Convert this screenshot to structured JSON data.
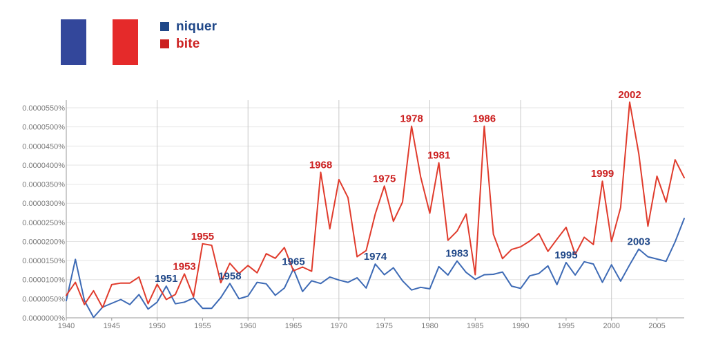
{
  "legend": [
    {
      "label": "niquer",
      "color": "#1f4788"
    },
    {
      "label": "bite",
      "color": "#cc2020"
    }
  ],
  "flag_colors": {
    "blue": "#33479b",
    "white": "#ffffff",
    "red": "#e52a2a"
  },
  "chart_data": {
    "type": "line",
    "title": "",
    "xlabel": "",
    "ylabel": "",
    "xlim": [
      1940,
      2008
    ],
    "ylim": [
      0,
      5.7e-05
    ],
    "grid": true,
    "y_ticks": [
      "0.0000000%",
      "0.0000050%",
      "0.0000100%",
      "0.0000150%",
      "0.0000200%",
      "0.0000250%",
      "0.0000300%",
      "0.0000350%",
      "0.0000400%",
      "0.0000450%",
      "0.0000500%",
      "0.0000550%"
    ],
    "y_tick_values": [
      0,
      5e-06,
      1e-05,
      1.5e-05,
      2e-05,
      2.5e-05,
      3e-05,
      3.5e-05,
      4e-05,
      4.5e-05,
      5e-05,
      5.5e-05
    ],
    "x_ticks": [
      "1940",
      "1945",
      "1950",
      "1955",
      "1960",
      "1965",
      "1970",
      "1975",
      "1980",
      "1985",
      "1990",
      "1995",
      "2000",
      "2005"
    ],
    "x_tick_values": [
      1940,
      1945,
      1950,
      1955,
      1960,
      1965,
      1970,
      1975,
      1980,
      1985,
      1990,
      1995,
      2000,
      2005
    ],
    "x": [
      1940,
      1941,
      1942,
      1943,
      1944,
      1945,
      1946,
      1947,
      1948,
      1949,
      1950,
      1951,
      1952,
      1953,
      1954,
      1955,
      1956,
      1957,
      1958,
      1959,
      1960,
      1961,
      1962,
      1963,
      1964,
      1965,
      1966,
      1967,
      1968,
      1969,
      1970,
      1971,
      1972,
      1973,
      1974,
      1975,
      1976,
      1977,
      1978,
      1979,
      1980,
      1981,
      1982,
      1983,
      1984,
      1985,
      1986,
      1987,
      1988,
      1989,
      1990,
      1991,
      1992,
      1993,
      1994,
      1995,
      1996,
      1997,
      1998,
      1999,
      2000,
      2001,
      2002,
      2003,
      2004,
      2005,
      2006,
      2007,
      2008
    ],
    "series": [
      {
        "name": "niquer",
        "color": "#3d6ab5",
        "values": [
          4.5e-06,
          1.53e-05,
          4.5e-06,
          1e-07,
          2.8e-06,
          3.8e-06,
          4.8e-06,
          3.5e-06,
          6.1e-06,
          2.3e-06,
          4.1e-06,
          8.3e-06,
          3.7e-06,
          4.1e-06,
          5.2e-06,
          2.5e-06,
          2.5e-06,
          5.3e-06,
          9e-06,
          5e-06,
          5.7e-06,
          9.3e-06,
          8.9e-06,
          5.9e-06,
          7.8e-06,
          1.28e-05,
          6.9e-06,
          9.7e-06,
          9e-06,
          1.07e-05,
          9.9e-06,
          9.3e-06,
          1.05e-05,
          7.8e-06,
          1.41e-05,
          1.13e-05,
          1.31e-05,
          9.7e-06,
          7.3e-06,
          8e-06,
          7.6e-06,
          1.34e-05,
          1.12e-05,
          1.49e-05,
          1.19e-05,
          1.01e-05,
          1.13e-05,
          1.14e-05,
          1.2e-05,
          8.3e-06,
          7.7e-06,
          1.1e-05,
          1.16e-05,
          1.36e-05,
          8.7e-06,
          1.45e-05,
          1.12e-05,
          1.47e-05,
          1.41e-05,
          9.3e-06,
          1.39e-05,
          9.6e-06,
          1.39e-05,
          1.8e-05,
          1.6e-05,
          1.54e-05,
          1.48e-05,
          1.99e-05,
          2.6e-05
        ]
      },
      {
        "name": "bite",
        "color": "#e03b2c",
        "values": [
          5.9e-06,
          9.3e-06,
          3.5e-06,
          7.1e-06,
          2.7e-06,
          8.7e-06,
          9.1e-06,
          9.1e-06,
          1.07e-05,
          3.7e-06,
          8.8e-06,
          4.8e-06,
          6.1e-06,
          1.15e-05,
          5.5e-06,
          1.94e-05,
          1.9e-05,
          9.2e-06,
          1.43e-05,
          1.16e-05,
          1.37e-05,
          1.18e-05,
          1.68e-05,
          1.56e-05,
          1.84e-05,
          1.23e-05,
          1.33e-05,
          1.22e-05,
          3.81e-05,
          2.33e-05,
          3.62e-05,
          3.15e-05,
          1.6e-05,
          1.76e-05,
          2.72e-05,
          3.45e-05,
          2.53e-05,
          3.03e-05,
          5.02e-05,
          3.69e-05,
          2.74e-05,
          4.06e-05,
          2.03e-05,
          2.27e-05,
          2.72e-05,
          1.13e-05,
          5.02e-05,
          2.19e-05,
          1.55e-05,
          1.79e-05,
          1.86e-05,
          2.01e-05,
          2.21e-05,
          1.74e-05,
          2.06e-05,
          2.37e-05,
          1.66e-05,
          2.11e-05,
          1.92e-05,
          3.58e-05,
          2e-05,
          2.89e-05,
          5.65e-05,
          4.3e-05,
          2.4e-05,
          3.71e-05,
          3.03e-05,
          4.14e-05,
          3.67e-05
        ]
      }
    ],
    "annotations": [
      {
        "text": "1951",
        "series": "niquer",
        "x": 1951,
        "y": 8.3e-06
      },
      {
        "text": "1958",
        "series": "niquer",
        "x": 1958,
        "y": 9e-06
      },
      {
        "text": "1965",
        "series": "niquer",
        "x": 1965,
        "y": 1.28e-05
      },
      {
        "text": "1974",
        "series": "niquer",
        "x": 1974,
        "y": 1.41e-05
      },
      {
        "text": "1983",
        "series": "niquer",
        "x": 1983,
        "y": 1.49e-05
      },
      {
        "text": "1995",
        "series": "niquer",
        "x": 1995,
        "y": 1.45e-05
      },
      {
        "text": "2003",
        "series": "niquer",
        "x": 2003,
        "y": 1.8e-05
      },
      {
        "text": "1953",
        "series": "bite",
        "x": 1953,
        "y": 1.15e-05
      },
      {
        "text": "1955",
        "series": "bite",
        "x": 1955,
        "y": 1.94e-05
      },
      {
        "text": "1968",
        "series": "bite",
        "x": 1968,
        "y": 3.81e-05
      },
      {
        "text": "1975",
        "series": "bite",
        "x": 1975,
        "y": 3.45e-05
      },
      {
        "text": "1978",
        "series": "bite",
        "x": 1978,
        "y": 5.02e-05
      },
      {
        "text": "1981",
        "series": "bite",
        "x": 1981,
        "y": 4.06e-05
      },
      {
        "text": "1986",
        "series": "bite",
        "x": 1986,
        "y": 5.02e-05
      },
      {
        "text": "1999",
        "series": "bite",
        "x": 1999,
        "y": 3.58e-05
      },
      {
        "text": "2002",
        "series": "bite",
        "x": 2002,
        "y": 5.65e-05
      }
    ],
    "annotation_colors": {
      "niquer": "#1f4788",
      "bite": "#cc2020"
    }
  }
}
